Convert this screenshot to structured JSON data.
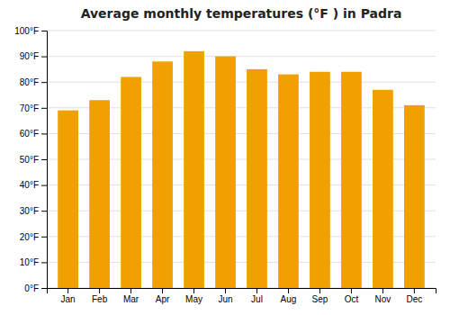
{
  "chart_data": {
    "type": "bar",
    "title": "Average monthly temperatures (°F ) in Padra",
    "categories": [
      "Jan",
      "Feb",
      "Mar",
      "Apr",
      "May",
      "Jun",
      "Jul",
      "Aug",
      "Sep",
      "Oct",
      "Nov",
      "Dec"
    ],
    "values": [
      69,
      73,
      82,
      88,
      92,
      90,
      85,
      83,
      84,
      84,
      77,
      71
    ],
    "color": "#F0A000",
    "ylim": [
      0,
      100
    ],
    "yticks": [
      {
        "value": 0,
        "label": "0°F"
      },
      {
        "value": 10,
        "label": "10°F"
      },
      {
        "value": 20,
        "label": "20°F"
      },
      {
        "value": 30,
        "label": "30°F"
      },
      {
        "value": 40,
        "label": "40°F"
      },
      {
        "value": 50,
        "label": "50°F"
      },
      {
        "value": 60,
        "label": "60°F"
      },
      {
        "value": 70,
        "label": "70°F"
      },
      {
        "value": 80,
        "label": "80°F"
      },
      {
        "value": 90,
        "label": "90°F"
      },
      {
        "value": 100,
        "label": "100°F"
      }
    ],
    "grid": true
  }
}
